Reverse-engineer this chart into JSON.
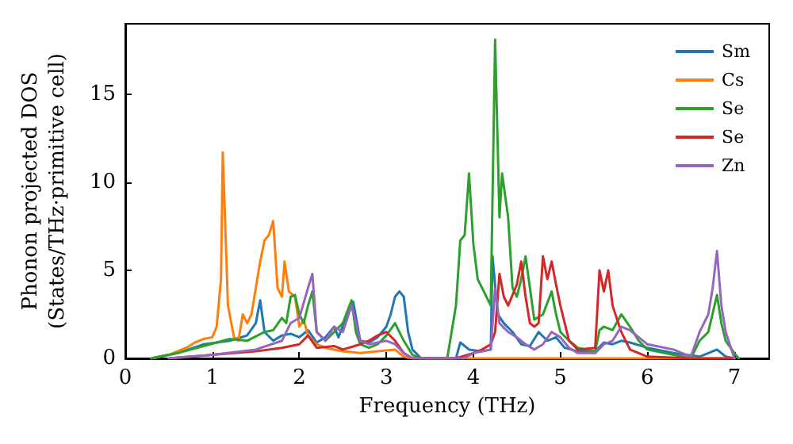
{
  "chart_data": {
    "type": "line",
    "xlabel": "Frequency (THz)",
    "ylabel": "Phonon projected DOS\n(States/THz·primitive cell)",
    "xlim": [
      0,
      7.4
    ],
    "ylim": [
      0,
      19
    ],
    "xticks": [
      0,
      1,
      2,
      3,
      4,
      5,
      6,
      7
    ],
    "yticks": [
      0,
      5,
      10,
      15
    ],
    "grid": false,
    "legend": "top right",
    "marker": "none",
    "line_style": "solid",
    "series": [
      {
        "name": "Sm",
        "color": "#1f77b4",
        "x": [
          0.3,
          0.6,
          0.9,
          1.2,
          1.4,
          1.5,
          1.55,
          1.6,
          1.7,
          1.8,
          1.9,
          2.0,
          2.1,
          2.2,
          2.3,
          2.4,
          2.45,
          2.55,
          2.62,
          2.7,
          2.8,
          2.9,
          3.0,
          3.05,
          3.1,
          3.15,
          3.2,
          3.25,
          3.3,
          3.4,
          3.8,
          3.85,
          3.95,
          4.1,
          4.2,
          4.22,
          4.28,
          4.35,
          4.45,
          4.55,
          4.65,
          4.75,
          4.85,
          4.95,
          5.05,
          5.2,
          5.4,
          5.5,
          5.6,
          5.7,
          5.8,
          6.0,
          6.3,
          6.6,
          6.8,
          6.9,
          7.0
        ],
        "values": [
          0,
          0.3,
          0.8,
          1.0,
          1.3,
          2.0,
          3.3,
          1.5,
          1.0,
          1.3,
          1.4,
          1.2,
          1.6,
          0.9,
          1.2,
          1.8,
          1.2,
          2.5,
          3.2,
          1.0,
          0.9,
          1.2,
          1.8,
          2.5,
          3.5,
          3.8,
          3.5,
          1.5,
          0.5,
          0,
          0,
          0.9,
          0.5,
          0.4,
          0.5,
          5.8,
          2.5,
          2.0,
          1.5,
          0.8,
          0.7,
          1.5,
          1.0,
          1.2,
          0.6,
          0.4,
          0.4,
          0.9,
          0.8,
          1.0,
          0.9,
          0.6,
          0.3,
          0.1,
          0.5,
          0.1,
          0
        ]
      },
      {
        "name": "Cs",
        "color": "#ff7f0e",
        "x": [
          0.3,
          0.5,
          0.7,
          0.8,
          0.9,
          1.0,
          1.05,
          1.1,
          1.12,
          1.18,
          1.25,
          1.3,
          1.35,
          1.4,
          1.45,
          1.5,
          1.55,
          1.6,
          1.65,
          1.7,
          1.75,
          1.8,
          1.83,
          1.88,
          1.95,
          2.0,
          2.05,
          2.1,
          2.2,
          2.3,
          2.5,
          2.7,
          2.9,
          3.1,
          3.2,
          3.3,
          4.0,
          7.0
        ],
        "values": [
          0,
          0.2,
          0.6,
          0.9,
          1.1,
          1.2,
          1.8,
          4.5,
          11.7,
          3.0,
          1.2,
          1.0,
          2.5,
          2.0,
          2.5,
          4.0,
          5.5,
          6.7,
          7.0,
          7.8,
          4.0,
          3.5,
          5.5,
          3.8,
          3.5,
          1.8,
          2.2,
          1.3,
          0.8,
          0.6,
          0.4,
          0.3,
          0.4,
          0.5,
          0.1,
          0,
          0,
          0
        ]
      },
      {
        "name": "Se",
        "color": "#2ca02c",
        "x": [
          0.3,
          0.6,
          0.9,
          1.2,
          1.4,
          1.6,
          1.7,
          1.8,
          1.85,
          1.9,
          1.95,
          2.0,
          2.05,
          2.1,
          2.15,
          2.2,
          2.3,
          2.4,
          2.5,
          2.6,
          2.65,
          2.7,
          2.8,
          2.9,
          3.0,
          3.1,
          3.2,
          3.3,
          3.4,
          3.7,
          3.8,
          3.85,
          3.9,
          3.95,
          4.0,
          4.05,
          4.1,
          4.15,
          4.2,
          4.25,
          4.3,
          4.33,
          4.4,
          4.45,
          4.5,
          4.55,
          4.6,
          4.7,
          4.8,
          4.9,
          4.95,
          5.0,
          5.1,
          5.2,
          5.4,
          5.45,
          5.5,
          5.6,
          5.7,
          5.8,
          5.9,
          6.0,
          6.5,
          6.6,
          6.7,
          6.8,
          6.85,
          6.9,
          7.0,
          7.05
        ],
        "values": [
          0,
          0.3,
          0.7,
          1.1,
          1.0,
          1.5,
          1.6,
          2.3,
          2.0,
          3.5,
          3.6,
          2.5,
          2.0,
          3.0,
          3.8,
          1.5,
          1.0,
          1.5,
          2.0,
          3.3,
          1.5,
          0.8,
          0.6,
          0.8,
          1.3,
          2.0,
          1.0,
          0.2,
          0,
          0,
          3.0,
          6.7,
          7.0,
          10.5,
          6.5,
          4.5,
          4.0,
          3.5,
          3.0,
          18.1,
          8.0,
          10.5,
          8.0,
          4.0,
          3.5,
          4.5,
          5.8,
          2.2,
          2.5,
          3.8,
          2.5,
          1.5,
          1.0,
          0.6,
          0.4,
          1.6,
          1.8,
          1.6,
          2.5,
          1.8,
          1.0,
          0.5,
          0,
          1.0,
          1.5,
          3.6,
          2.0,
          1.0,
          0.3,
          0
        ]
      },
      {
        "name": "Se",
        "color": "#d62728",
        "x": [
          0.5,
          1.0,
          1.5,
          1.8,
          2.0,
          2.1,
          2.2,
          2.4,
          2.5,
          2.7,
          2.8,
          2.9,
          3.0,
          3.1,
          3.2,
          3.3,
          3.8,
          4.0,
          4.1,
          4.2,
          4.25,
          4.3,
          4.35,
          4.4,
          4.5,
          4.55,
          4.6,
          4.65,
          4.7,
          4.75,
          4.8,
          4.85,
          4.9,
          4.95,
          5.0,
          5.1,
          5.2,
          5.4,
          5.45,
          5.5,
          5.55,
          5.6,
          5.7,
          5.8,
          6.0,
          6.5,
          7.0
        ],
        "values": [
          0,
          0.2,
          0.4,
          0.6,
          0.8,
          1.3,
          0.6,
          0.7,
          0.5,
          0.8,
          1.0,
          1.3,
          1.5,
          1.0,
          0.3,
          0,
          0,
          0.3,
          0.5,
          0.8,
          1.5,
          4.8,
          3.5,
          3.0,
          4.2,
          5.5,
          3.5,
          2.0,
          1.8,
          2.0,
          5.8,
          4.5,
          5.5,
          4.2,
          3.0,
          1.0,
          0.5,
          0.6,
          5.0,
          3.8,
          5.0,
          3.0,
          1.5,
          0.5,
          0.1,
          0,
          0
        ]
      },
      {
        "name": "Zn",
        "color": "#9467bd",
        "x": [
          0.5,
          1.0,
          1.5,
          1.8,
          1.9,
          2.0,
          2.1,
          2.15,
          2.2,
          2.3,
          2.4,
          2.5,
          2.6,
          2.7,
          2.8,
          2.9,
          3.0,
          3.1,
          3.2,
          3.3,
          3.9,
          4.0,
          4.1,
          4.2,
          4.25,
          4.3,
          4.4,
          4.5,
          4.6,
          4.7,
          4.8,
          4.9,
          5.0,
          5.1,
          5.2,
          5.4,
          5.5,
          5.6,
          5.7,
          5.8,
          5.9,
          6.0,
          6.3,
          6.5,
          6.6,
          6.7,
          6.75,
          6.8,
          6.85,
          6.9,
          7.0
        ],
        "values": [
          0,
          0.2,
          0.5,
          1.0,
          2.0,
          2.3,
          4.0,
          4.8,
          1.5,
          1.0,
          1.8,
          1.5,
          3.0,
          1.0,
          0.8,
          0.9,
          1.0,
          0.8,
          0.3,
          0,
          0,
          0.3,
          0.4,
          0.5,
          4.0,
          2.0,
          1.5,
          1.2,
          0.8,
          0.5,
          0.8,
          1.5,
          1.2,
          0.6,
          0.3,
          0.3,
          0.8,
          1.0,
          1.8,
          1.6,
          1.2,
          0.8,
          0.5,
          0.1,
          1.5,
          2.5,
          4.0,
          6.1,
          3.0,
          1.5,
          0
        ]
      }
    ]
  }
}
